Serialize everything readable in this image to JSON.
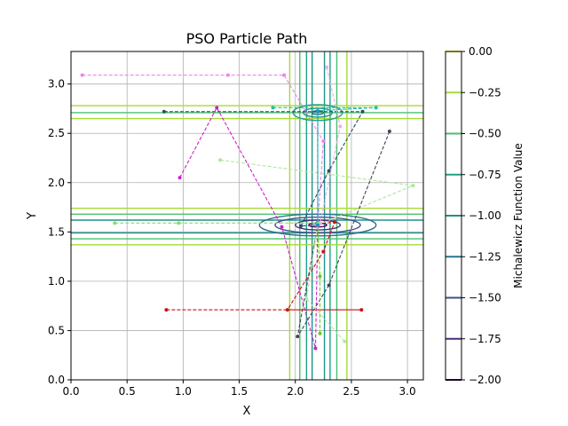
{
  "chart_data": {
    "type": "line",
    "title": "PSO Particle Path",
    "xlabel": "X",
    "ylabel": "Y",
    "xlim": [
      0,
      3.14159
    ],
    "ylim": [
      0,
      3.33
    ],
    "xticks": [
      0.0,
      0.5,
      1.0,
      1.5,
      2.0,
      2.5,
      3.0
    ],
    "yticks": [
      0.0,
      0.5,
      1.0,
      1.5,
      2.0,
      2.5,
      3.0
    ],
    "xtick_labels": [
      "0.0",
      "0.5",
      "1.0",
      "1.5",
      "2.0",
      "2.5",
      "3.0"
    ],
    "ytick_labels": [
      "0.0",
      "0.5",
      "1.0",
      "1.5",
      "2.0",
      "2.5",
      "3.0"
    ],
    "grid": true,
    "colorbar": {
      "label": "Michalewicz Function Value",
      "levels": [
        0.0,
        -0.25,
        -0.5,
        -0.75,
        -1.0,
        -1.25,
        -1.5,
        -1.75,
        -2.0
      ],
      "tick_labels": [
        "0.00",
        "−0.25",
        "−0.50",
        "−0.75",
        "−1.00",
        "−1.25",
        "−1.50",
        "−1.75",
        "−2.00"
      ],
      "colors": [
        "#fde725",
        "#a5db36",
        "#4ac16d",
        "#1fa187",
        "#21918c",
        "#2c728e",
        "#3b528b",
        "#472d7b",
        "#440154"
      ]
    },
    "contours": {
      "vertical_bands_x": [
        1.95,
        2.04,
        2.1,
        2.15,
        2.26,
        2.31,
        2.37,
        2.46
      ],
      "horizontal_bands_y": [
        2.65,
        2.78,
        2.71,
        1.37,
        1.74,
        1.43,
        1.68,
        1.49,
        1.62
      ],
      "minimum_center": [
        2.2,
        1.57
      ],
      "secondary_center": [
        2.2,
        2.71
      ]
    },
    "series": [
      {
        "color": "#ee82ee",
        "points": [
          [
            0.1,
            3.09
          ],
          [
            1.4,
            3.09
          ],
          [
            1.9,
            3.09
          ],
          [
            2.25,
            2.42
          ],
          [
            2.2,
            1.56
          ]
        ]
      },
      {
        "color": "#2e4a6b",
        "points": [
          [
            0.83,
            2.72
          ],
          [
            2.6,
            2.72
          ],
          [
            2.3,
            2.12
          ],
          [
            2.05,
            1.56
          ],
          [
            2.2,
            1.57
          ]
        ]
      },
      {
        "color": "#20c0b0",
        "points": [
          [
            1.8,
            2.76
          ],
          [
            2.72,
            2.76
          ],
          [
            2.2,
            2.73
          ],
          [
            2.2,
            1.6
          ]
        ]
      },
      {
        "color": "#cc22cc",
        "points": [
          [
            0.97,
            2.05
          ],
          [
            1.3,
            2.76
          ],
          [
            1.88,
            1.55
          ],
          [
            2.18,
            0.32
          ],
          [
            2.2,
            1.56
          ]
        ]
      },
      {
        "color": "#aee89a",
        "points": [
          [
            1.33,
            2.23
          ],
          [
            3.05,
            1.97
          ],
          [
            2.2,
            1.57
          ]
        ]
      },
      {
        "color": "#88dd66",
        "points": [
          [
            0.39,
            1.59
          ],
          [
            0.96,
            1.59
          ],
          [
            2.21,
            1.59
          ]
        ]
      },
      {
        "color": "#44445a",
        "points": [
          [
            2.84,
            2.52
          ],
          [
            2.3,
            0.96
          ],
          [
            2.02,
            0.44
          ],
          [
            2.2,
            1.57
          ]
        ]
      },
      {
        "color": "#cc1111",
        "points": [
          [
            0.85,
            0.71
          ],
          [
            2.59,
            0.71
          ],
          [
            1.93,
            0.71
          ],
          [
            2.25,
            1.3
          ],
          [
            2.35,
            1.6
          ],
          [
            2.2,
            1.58
          ]
        ]
      },
      {
        "color": "#eeaaee",
        "points": [
          [
            2.28,
            3.17
          ],
          [
            2.4,
            2.57
          ],
          [
            2.22,
            1.58
          ]
        ]
      },
      {
        "color": "#b0e8a0",
        "points": [
          [
            2.44,
            0.39
          ],
          [
            2.1,
            0.82
          ],
          [
            2.2,
            1.58
          ]
        ]
      },
      {
        "color": "#66cc22",
        "points": [
          [
            2.22,
            0.47
          ],
          [
            2.22,
            1.05
          ],
          [
            2.2,
            1.57
          ]
        ]
      },
      {
        "color": "#1e90c0",
        "points": [
          [
            2.2,
            2.72
          ],
          [
            2.2,
            1.57
          ]
        ]
      }
    ]
  }
}
